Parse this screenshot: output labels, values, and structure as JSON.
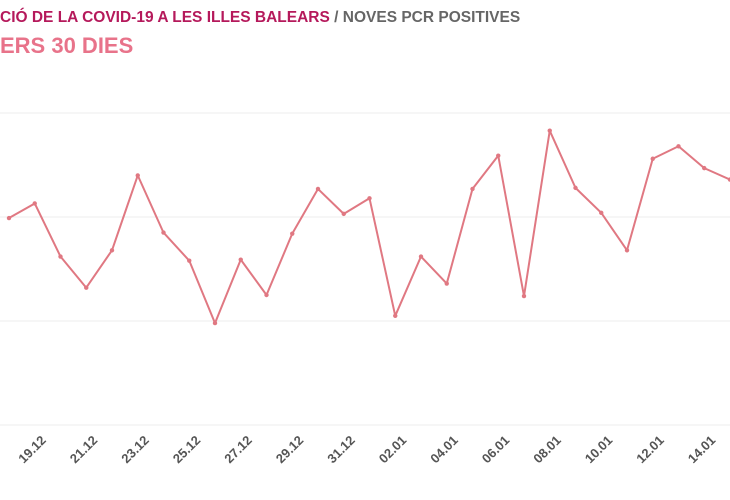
{
  "chart_data": {
    "type": "line",
    "title": "CIÓ DE LA COVID-19 A LES ILLES BALEARS",
    "title_2": "/ NOVES PCR POSITIVES",
    "subtitle": "ERS 30 DIES",
    "categories": [
      null,
      "19.12",
      null,
      "21.12",
      null,
      "23.12",
      null,
      "25.12",
      null,
      "27.12",
      null,
      "29.12",
      null,
      "31.12",
      null,
      "02.01",
      null,
      "04.01",
      null,
      "06.01",
      null,
      "08.01",
      null,
      "10.01",
      null,
      "12.01",
      null,
      "14.01",
      null
    ],
    "series": [
      {
        "color": "#e07882",
        "values": [
          199,
          213,
          162,
          132,
          168,
          240,
          185,
          158,
          98,
          159,
          125,
          184,
          227,
          203,
          218,
          105,
          162,
          136,
          227,
          259,
          124,
          283,
          228,
          204,
          168,
          256,
          268,
          247,
          236
        ]
      }
    ],
    "ylim": [
      0,
      300
    ],
    "yticks": [
      0,
      100,
      200,
      300
    ],
    "grid": true
  }
}
